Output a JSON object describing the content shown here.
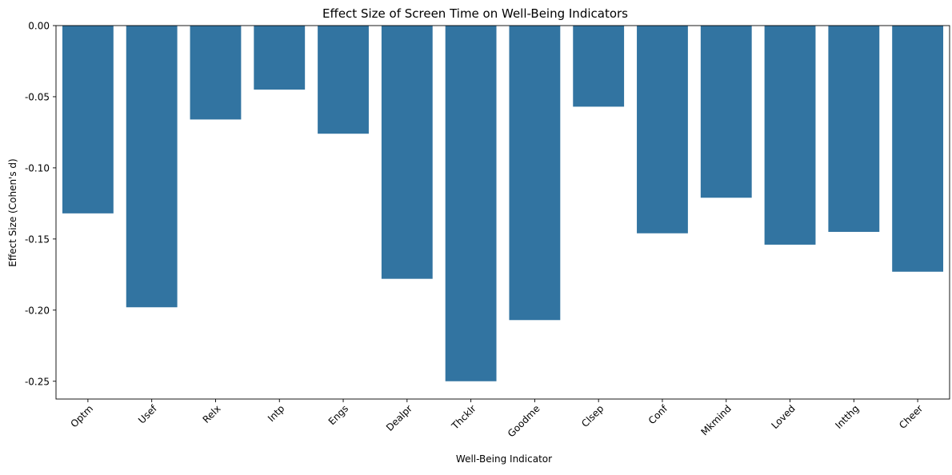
{
  "chart_data": {
    "type": "bar",
    "title": "Effect Size of Screen Time on Well-Being Indicators",
    "xlabel": "Well-Being Indicator",
    "ylabel": "Effect Size (Cohen's d)",
    "categories": [
      "Optm",
      "Usef",
      "Relx",
      "Intp",
      "Engs",
      "Dealpr",
      "Thcklr",
      "Goodme",
      "Clsep",
      "Conf",
      "Mkmind",
      "Loved",
      "Intthg",
      "Cheer"
    ],
    "values": [
      -0.132,
      -0.198,
      -0.066,
      -0.045,
      -0.076,
      -0.178,
      -0.25,
      -0.207,
      -0.057,
      -0.146,
      -0.121,
      -0.154,
      -0.145,
      -0.173
    ],
    "ylim": [
      -0.2625,
      0.0
    ],
    "yticks": [
      0.0,
      -0.05,
      -0.1,
      -0.15,
      -0.2,
      -0.25
    ],
    "ytick_labels": [
      "0.00",
      "-0.05",
      "-0.10",
      "-0.15",
      "-0.20",
      "-0.25"
    ],
    "bar_color": "#3274a1",
    "grid": false,
    "legend": "none"
  }
}
